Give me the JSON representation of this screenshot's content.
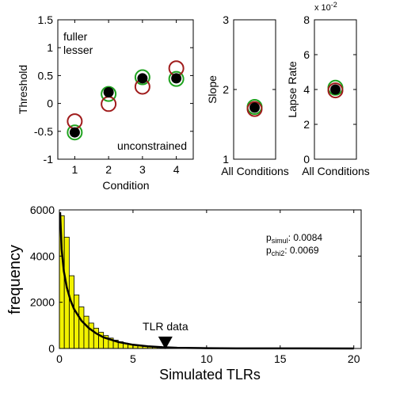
{
  "colors": {
    "fuller": "#1fa31f",
    "lesser": "#a01c1c",
    "unconstrained": "#000000",
    "histogram_fill": "#f2f200",
    "axis": "#000000"
  },
  "chart_data": [
    {
      "id": "threshold",
      "type": "scatter",
      "xlabel": "Condition",
      "ylabel": "Threshold",
      "xlim": [
        0.5,
        4.5
      ],
      "ylim": [
        -1,
        1.5
      ],
      "x_ticks": [
        1,
        2,
        3,
        4
      ],
      "y_ticks": [
        -1,
        -0.5,
        0,
        0.5,
        1,
        1.5
      ],
      "x_tick_labels": [
        "1",
        "2",
        "3",
        "4"
      ],
      "y_tick_labels": [
        "-1",
        "-0.5",
        "0",
        "0.5",
        "1",
        "1.5"
      ],
      "legend": {
        "placement": "top-left",
        "entries": [
          "fuller",
          "lesser"
        ]
      },
      "annotation": "unconstrained",
      "series": [
        {
          "name": "fuller",
          "marker": "open-circle",
          "x": [
            1,
            2,
            3,
            4
          ],
          "y": [
            -0.52,
            0.17,
            0.47,
            0.44
          ]
        },
        {
          "name": "lesser",
          "marker": "open-circle",
          "x": [
            1,
            2,
            3,
            4
          ],
          "y": [
            -0.32,
            -0.01,
            0.3,
            0.63
          ]
        },
        {
          "name": "unconstrained",
          "marker": "filled-circle",
          "x": [
            1,
            2,
            3,
            4
          ],
          "y": [
            -0.52,
            0.2,
            0.45,
            0.45
          ]
        }
      ]
    },
    {
      "id": "slope",
      "type": "scatter",
      "xlabel": "All Conditions",
      "ylabel": "Slope",
      "ylim": [
        1,
        3
      ],
      "y_ticks": [
        1,
        2,
        3
      ],
      "y_tick_labels": [
        "1",
        "2",
        "3"
      ],
      "series": [
        {
          "name": "fuller",
          "marker": "open-circle",
          "y": [
            1.75
          ]
        },
        {
          "name": "lesser",
          "marker": "open-circle",
          "y": [
            1.72
          ]
        },
        {
          "name": "unconstrained",
          "marker": "filled-circle",
          "y": [
            1.74
          ]
        }
      ]
    },
    {
      "id": "lapse",
      "type": "scatter",
      "xlabel": "All Conditions",
      "ylabel": "Lapse Rate",
      "ylim": [
        0,
        8
      ],
      "y_ticks": [
        0,
        2,
        4,
        6,
        8
      ],
      "y_tick_labels": [
        "0",
        "2",
        "4",
        "6",
        "8"
      ],
      "scale_label": "x 10",
      "scale_exponent": "-2",
      "series": [
        {
          "name": "fuller",
          "marker": "open-circle",
          "y": [
            4.1
          ]
        },
        {
          "name": "lesser",
          "marker": "open-circle",
          "y": [
            3.95
          ]
        },
        {
          "name": "unconstrained",
          "marker": "filled-circle",
          "y": [
            4.0
          ]
        }
      ]
    },
    {
      "id": "histogram",
      "type": "bar",
      "xlabel": "Simulated TLRs",
      "ylabel": "frequency",
      "xlim": [
        0,
        20.5
      ],
      "ylim": [
        0,
        6000
      ],
      "x_ticks": [
        0,
        5,
        10,
        15,
        20
      ],
      "y_ticks": [
        0,
        2000,
        4000,
        6000
      ],
      "x_tick_labels": [
        "0",
        "5",
        "10",
        "15",
        "20"
      ],
      "y_tick_labels": [
        "0",
        "2000",
        "4000",
        "6000"
      ],
      "bin_width": 0.333,
      "bin_counts": [
        5750,
        4820,
        3150,
        2320,
        1800,
        1400,
        1100,
        880,
        700,
        560,
        450,
        360,
        290,
        230,
        185,
        150,
        120,
        95,
        78,
        62,
        50,
        40,
        32,
        26,
        20,
        16,
        13,
        10,
        8,
        6
      ],
      "density_curve": {
        "x": [
          0.05,
          0.15,
          0.3,
          0.5,
          0.75,
          1.0,
          1.5,
          2.0,
          2.5,
          3.0,
          4.0,
          5.0,
          6.0,
          7.0,
          8.0,
          10.0,
          12.0,
          15.0,
          20.0
        ],
        "y": [
          5900,
          4300,
          3350,
          2650,
          2100,
          1700,
          1200,
          880,
          650,
          480,
          280,
          160,
          95,
          55,
          32,
          12,
          5,
          2,
          0
        ]
      },
      "tlr_data": {
        "value": 7.2,
        "label": "TLR data"
      },
      "stats": [
        {
          "prefix": "p",
          "sub": "simul",
          "value": ": 0.0084"
        },
        {
          "prefix": "p",
          "sub": "chi2",
          "value": ": 0.0069"
        }
      ]
    }
  ]
}
